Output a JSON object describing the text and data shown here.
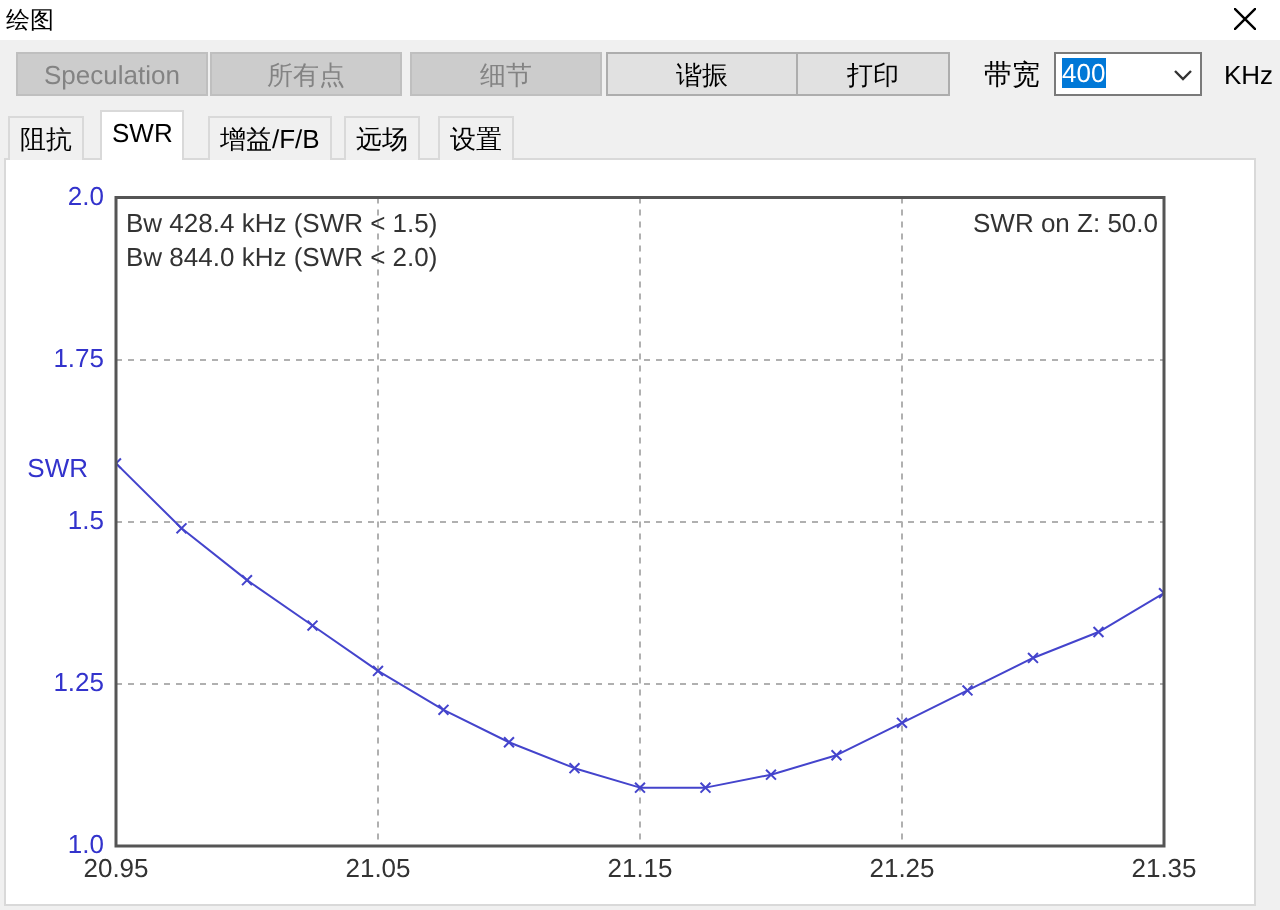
{
  "chart_data": {
    "type": "line",
    "title": "绘图",
    "ylabel": "SWR",
    "x": [
      20.95,
      20.975,
      21.0,
      21.025,
      21.05,
      21.075,
      21.1,
      21.125,
      21.15,
      21.175,
      21.2,
      21.225,
      21.25,
      21.275,
      21.3,
      21.325,
      21.35
    ],
    "series": [
      {
        "color": "#4444cc",
        "values": [
          1.59,
          1.49,
          1.41,
          1.34,
          1.27,
          1.21,
          1.16,
          1.12,
          1.09,
          1.09,
          1.11,
          1.14,
          1.19,
          1.24,
          1.29,
          1.33,
          1.39
        ]
      }
    ],
    "xlim": [
      20.95,
      21.35
    ],
    "xticks": [
      20.95,
      21.05,
      21.15,
      21.25,
      21.35
    ],
    "ylim": [
      1.0,
      2.0
    ],
    "yticks": [
      {
        "value": 1.0,
        "label": "1.0"
      },
      1.25,
      1.5,
      1.75,
      {
        "value": 2.0,
        "label": "2.0"
      }
    ],
    "grid": true,
    "marker": "cross",
    "line_style": "solid",
    "annotations": [
      "Bw 428.4 kHz (SWR < 1.5)",
      "Bw 844.0 kHz (SWR < 2.0)",
      "SWR on Z: 50.0",
      "Speculation",
      "所有点",
      "细节",
      "谐振",
      "打印",
      "带宽",
      "400",
      "KHz",
      "阻抗",
      "SWR",
      "增益/F/B",
      "远场",
      "设置"
    ]
  }
}
